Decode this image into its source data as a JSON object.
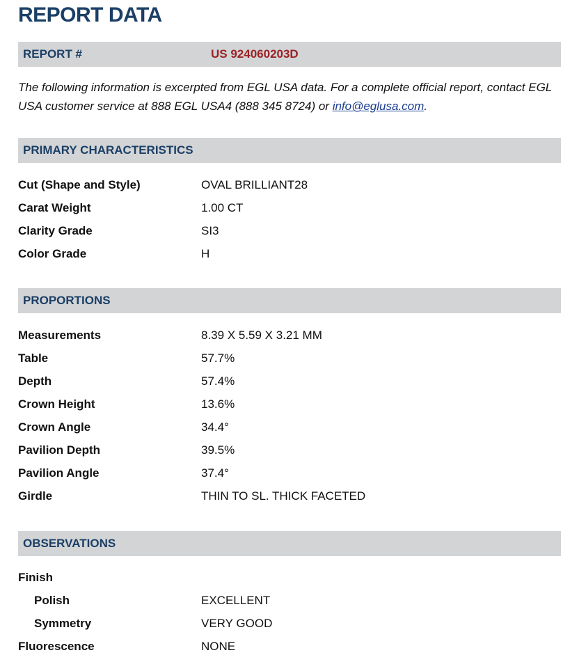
{
  "title": "REPORT DATA",
  "report": {
    "label": "REPORT #",
    "number": "US 924060203D"
  },
  "intro": {
    "text": "The following information is excerpted from EGL USA data. For a complete official report, contact EGL USA customer service at 888 EGL USA4 (888 345 8724) or ",
    "link": "info@eglusa.com",
    "end": "."
  },
  "primary": {
    "heading": "PRIMARY CHARACTERISTICS",
    "rows": [
      {
        "k": "Cut (Shape and Style)",
        "v": "OVAL BRILLIANT28"
      },
      {
        "k": "Carat Weight",
        "v": "1.00 CT"
      },
      {
        "k": "Clarity Grade",
        "v": "SI3"
      },
      {
        "k": "Color Grade",
        "v": "H"
      }
    ]
  },
  "proportions": {
    "heading": "PROPORTIONS",
    "rows": [
      {
        "k": "Measurements",
        "v": "8.39 X 5.59 X 3.21 MM"
      },
      {
        "k": "Table",
        "v": "57.7%"
      },
      {
        "k": "Depth",
        "v": "57.4%"
      },
      {
        "k": "Crown Height",
        "v": "13.6%"
      },
      {
        "k": "Crown Angle",
        "v": "34.4°"
      },
      {
        "k": "Pavilion Depth",
        "v": "39.5%"
      },
      {
        "k": "Pavilion Angle",
        "v": "37.4°"
      },
      {
        "k": "Girdle",
        "v": "THIN TO SL. THICK FACETED"
      }
    ]
  },
  "observations": {
    "heading": "OBSERVATIONS",
    "rows": [
      {
        "k": "Finish",
        "v": ""
      },
      {
        "k": "Polish",
        "v": "EXCELLENT"
      },
      {
        "k": "Symmetry",
        "v": "VERY GOOD"
      },
      {
        "k": "Fluorescence",
        "v": "NONE"
      }
    ]
  }
}
